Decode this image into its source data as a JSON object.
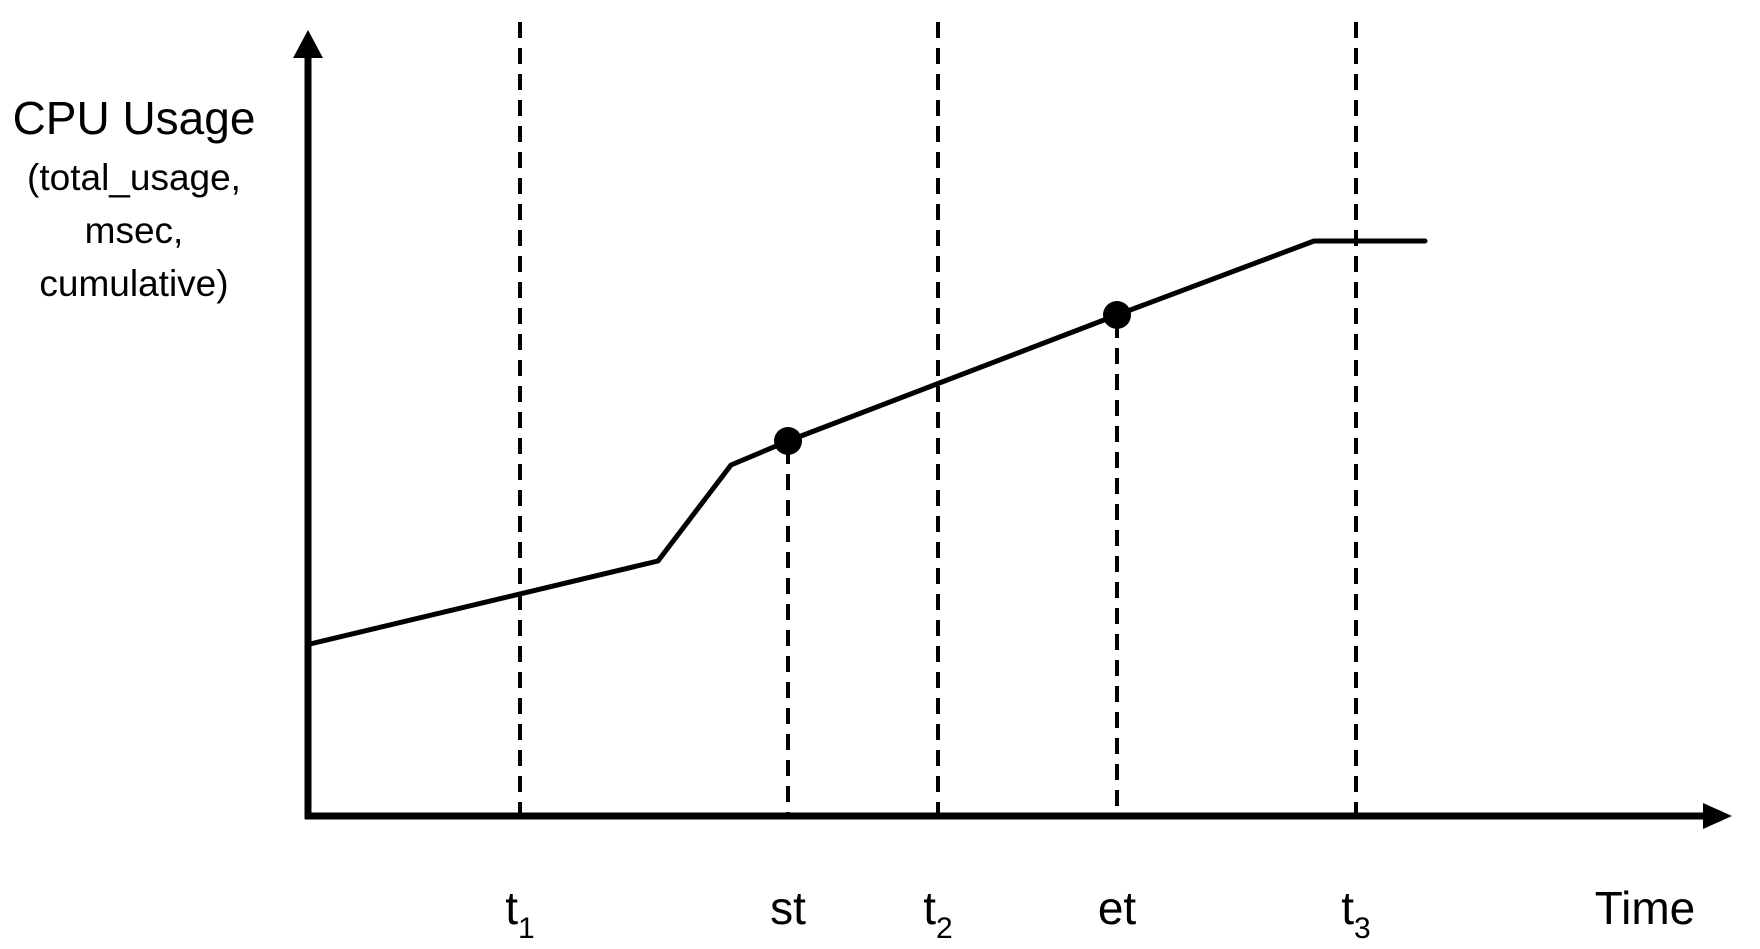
{
  "diagram": {
    "y_axis_label": {
      "line1": "CPU Usage",
      "line2": "(total_usage,",
      "line3": "msec,",
      "line4": "cumulative)"
    },
    "x_axis_label": "Time",
    "markers": [
      {
        "id": "t1",
        "base": "t",
        "sub": "1"
      },
      {
        "id": "st",
        "base": "st",
        "sub": ""
      },
      {
        "id": "t2",
        "base": "t",
        "sub": "2"
      },
      {
        "id": "et",
        "base": "et",
        "sub": ""
      },
      {
        "id": "t3",
        "base": "t",
        "sub": "3"
      }
    ],
    "colors": {
      "stroke": "#000000",
      "background": "#ffffff"
    }
  }
}
